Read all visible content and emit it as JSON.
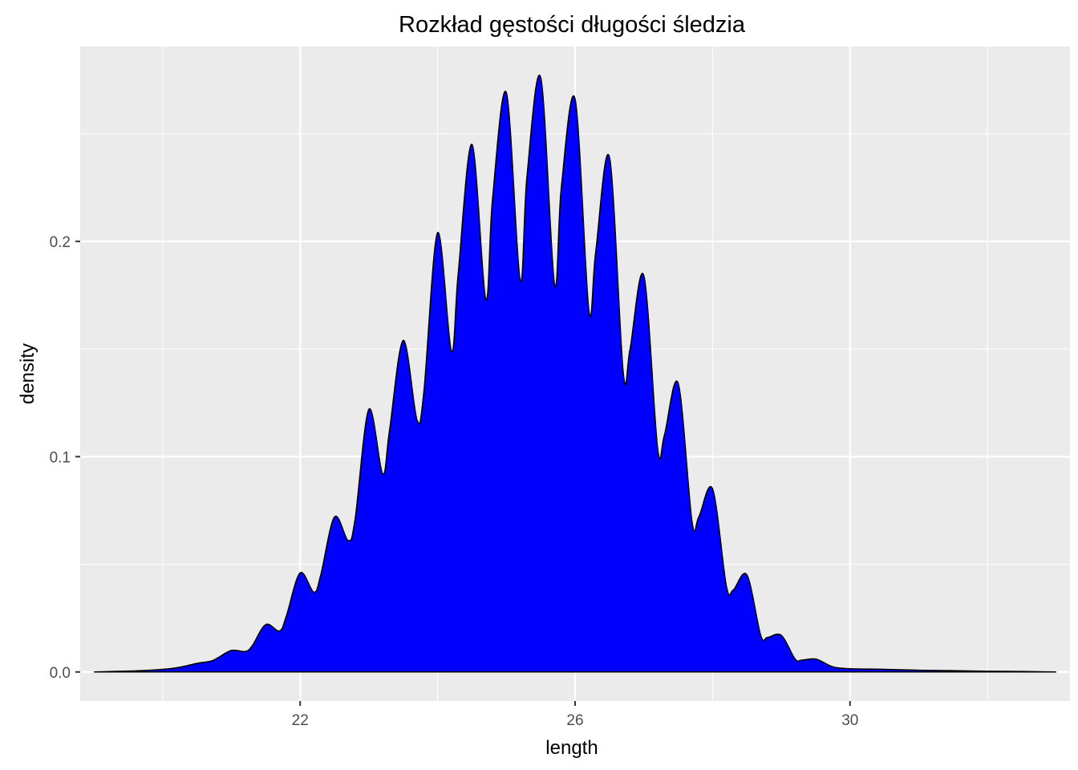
{
  "chart_data": {
    "type": "area",
    "title": "Rozkład gęstości długości śledzia",
    "xlabel": "length",
    "ylabel": "density",
    "xlim": [
      18.8,
      33.2
    ],
    "ylim": [
      -0.0135,
      0.2905
    ],
    "x_ticks": [
      22,
      26,
      30
    ],
    "x_tick_labels": [
      "22",
      "26",
      "30"
    ],
    "x_minor_ticks": [
      20,
      24,
      28,
      32
    ],
    "y_ticks": [
      0.0,
      0.1,
      0.2
    ],
    "y_tick_labels": [
      "0.0",
      "0.1",
      "0.2"
    ],
    "y_minor_ticks": [
      0.05,
      0.15,
      0.25
    ],
    "grid": true,
    "legend": "none",
    "fill_color": "#0000ff",
    "line_color": "#000000",
    "panel_color": "#ebebeb",
    "grid_color": "#ffffff",
    "series": [
      {
        "x": [
          19.0,
          19.5,
          19.8,
          20.1,
          20.3,
          20.5,
          20.7,
          20.8,
          21.0,
          21.2,
          21.3,
          21.5,
          21.7,
          21.8,
          22.0,
          22.2,
          22.3,
          22.5,
          22.7,
          22.8,
          23.0,
          23.2,
          23.3,
          23.5,
          23.7,
          23.8,
          24.0,
          24.2,
          24.3,
          24.5,
          24.7,
          24.8,
          25.0,
          25.2,
          25.3,
          25.5,
          25.7,
          25.8,
          26.0,
          26.2,
          26.3,
          26.5,
          26.7,
          26.8,
          27.0,
          27.2,
          27.3,
          27.5,
          27.7,
          27.8,
          28.0,
          28.2,
          28.3,
          28.5,
          28.7,
          28.8,
          29.0,
          29.2,
          29.3,
          29.5,
          29.7,
          29.8,
          30.0,
          30.5,
          31.0,
          31.5,
          32.0,
          32.5,
          33.0
        ],
        "y": [
          0.0,
          0.0004,
          0.0008,
          0.0015,
          0.0025,
          0.004,
          0.005,
          0.0065,
          0.01,
          0.0095,
          0.012,
          0.022,
          0.019,
          0.026,
          0.046,
          0.037,
          0.045,
          0.072,
          0.061,
          0.071,
          0.122,
          0.092,
          0.112,
          0.154,
          0.117,
          0.13,
          0.204,
          0.149,
          0.185,
          0.245,
          0.173,
          0.22,
          0.269,
          0.182,
          0.23,
          0.276,
          0.18,
          0.225,
          0.266,
          0.168,
          0.195,
          0.239,
          0.139,
          0.15,
          0.184,
          0.104,
          0.11,
          0.134,
          0.07,
          0.072,
          0.085,
          0.04,
          0.038,
          0.045,
          0.017,
          0.016,
          0.017,
          0.006,
          0.0055,
          0.006,
          0.003,
          0.002,
          0.0015,
          0.0012,
          0.0008,
          0.0006,
          0.0003,
          0.0002,
          0.0
        ]
      }
    ]
  }
}
